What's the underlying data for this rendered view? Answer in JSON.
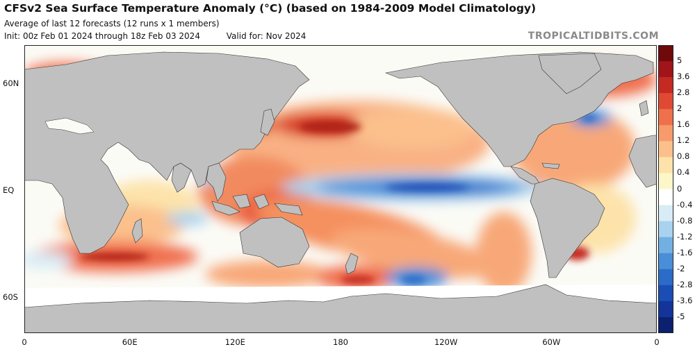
{
  "header": {
    "title": "CFSv2 Sea Surface Temperature Anomaly (°C) (based on 1984-2009 Model Climatology)",
    "subtitle": "Average of last 12 forecasts (12 runs x 1 members)",
    "init": "Init: 00z Feb 01 2024 through 18z Feb 03 2024",
    "valid": "Valid for: Nov 2024",
    "credit": "TROPICALTIDBITS.COM"
  },
  "map": {
    "y_labels": [
      {
        "label": "60N",
        "lat": 60
      },
      {
        "label": "EQ",
        "lat": 0
      },
      {
        "label": "60S",
        "lat": -60
      }
    ],
    "x_labels": [
      {
        "label": "0",
        "lon": 0
      },
      {
        "label": "60E",
        "lon": 60
      },
      {
        "label": "120E",
        "lon": 120
      },
      {
        "label": "180",
        "lon": 180
      },
      {
        "label": "120W",
        "lon": 240
      },
      {
        "label": "60W",
        "lon": 300
      },
      {
        "label": "0",
        "lon": 360
      }
    ],
    "lat_range": [
      -80,
      82
    ],
    "lon_range": [
      0,
      360
    ],
    "colors": {
      "land": "#c0c0c0",
      "ice": "#ffffff",
      "ocean_neutral": "#fbfbf6",
      "border": "#222222"
    }
  },
  "colorbar": {
    "levels": [
      {
        "label": "5",
        "color": "#6e0a0a"
      },
      {
        "label": "3.6",
        "color": "#a0141a"
      },
      {
        "label": "2.8",
        "color": "#c42a22"
      },
      {
        "label": "2",
        "color": "#e04a34"
      },
      {
        "label": "1.6",
        "color": "#f0704c"
      },
      {
        "label": "1.2",
        "color": "#f79a6c"
      },
      {
        "label": "0.8",
        "color": "#fbc08c"
      },
      {
        "label": "0.4",
        "color": "#fde3aa"
      },
      {
        "label": "0",
        "color": "#fdf6c8"
      },
      {
        "label": "-0.4",
        "color": "#ffffff"
      },
      {
        "label": "-0.8",
        "color": "#d8ecf6"
      },
      {
        "label": "-1.2",
        "color": "#a8d2ee"
      },
      {
        "label": "-1.6",
        "color": "#72b0e4"
      },
      {
        "label": "-2",
        "color": "#4a8ed8"
      },
      {
        "label": "-2.8",
        "color": "#2a6cc8"
      },
      {
        "label": "-3.6",
        "color": "#1a4eb4"
      },
      {
        "label": "-5",
        "color": "#13359a"
      },
      {
        "label": "",
        "color": "#0c2070"
      }
    ]
  }
}
